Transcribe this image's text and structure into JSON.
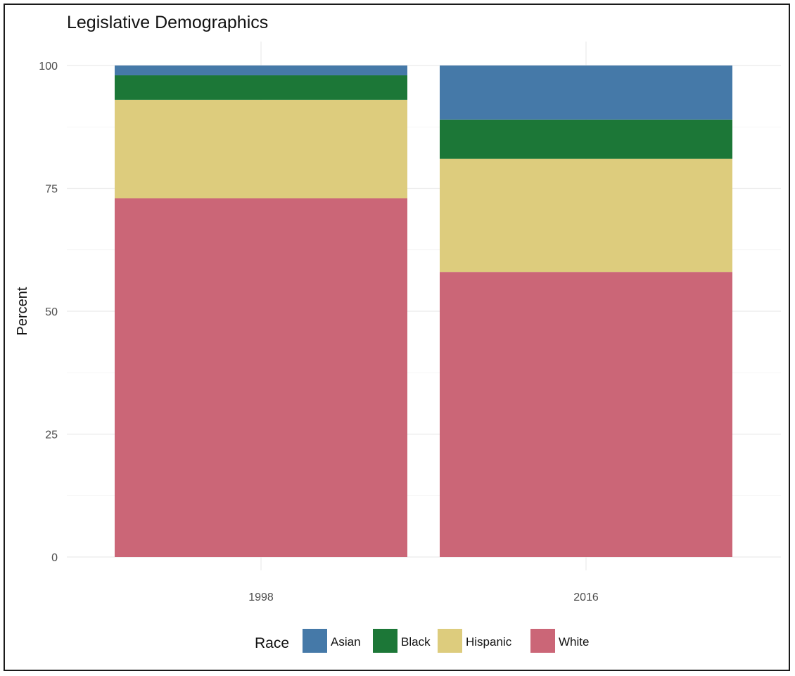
{
  "chart_data": {
    "type": "bar",
    "stacked": true,
    "title": "Legislative Demographics",
    "xlabel": "",
    "ylabel": "Percent",
    "ylim": [
      0,
      100
    ],
    "yticks": [
      0,
      25,
      50,
      75,
      100
    ],
    "grid": true,
    "categories": [
      "1998",
      "2016"
    ],
    "series": [
      {
        "name": "White",
        "color": "#CB6677",
        "values": [
          73,
          58
        ]
      },
      {
        "name": "Hispanic",
        "color": "#DDCC7D",
        "values": [
          20,
          23
        ]
      },
      {
        "name": "Black",
        "color": "#1C7737",
        "values": [
          5,
          8
        ]
      },
      {
        "name": "Asian",
        "color": "#4579A8",
        "values": [
          2,
          11
        ]
      }
    ],
    "legend": {
      "title": "Race",
      "position": "bottom",
      "order": [
        "Asian",
        "Black",
        "Hispanic",
        "White"
      ]
    }
  }
}
